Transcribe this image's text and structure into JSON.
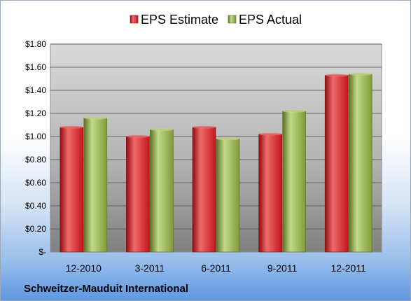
{
  "company": "Schweitzer-Mauduit International",
  "colors": {
    "estimate": "#c0171b",
    "estimate_light": "#f06a6a",
    "estimate_dark": "#8e0d10",
    "actual": "#7f9a3b",
    "actual_light": "#c3d98a",
    "actual_dark": "#5a7022"
  },
  "chart_data": {
    "type": "bar",
    "categories": [
      "12-2010",
      "3-2011",
      "6-2011",
      "9-2011",
      "12-2011"
    ],
    "series": [
      {
        "name": "EPS Estimate",
        "values": [
          1.08,
          1.0,
          1.08,
          1.02,
          1.53
        ]
      },
      {
        "name": "EPS Actual",
        "values": [
          1.16,
          1.06,
          0.98,
          1.22,
          1.54
        ]
      }
    ],
    "yticks": [
      0,
      0.2,
      0.4,
      0.6,
      0.8,
      1.0,
      1.2,
      1.4,
      1.6,
      1.8
    ],
    "ytick_labels": [
      "$-",
      "$0.20",
      "$0.40",
      "$0.60",
      "$0.80",
      "$1.00",
      "$1.20",
      "$1.40",
      "$1.60",
      "$1.80"
    ],
    "ylim": [
      0,
      1.8
    ],
    "grid": true,
    "legend_position": "top"
  }
}
